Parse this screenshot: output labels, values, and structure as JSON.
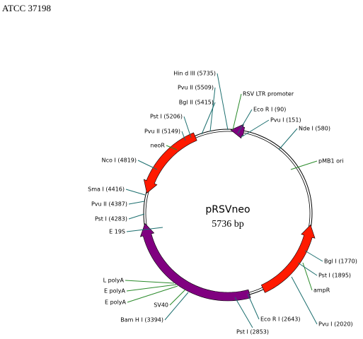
{
  "header": {
    "title": "ATCC 37198"
  },
  "plasmid": {
    "name": "pRSVneo",
    "size": "5736 bp"
  },
  "labels": [
    "Hin d III (5735)",
    "Pvu II (5509)",
    "Bgl  II (5415)",
    "Pst I (5206)",
    "Pvu II (5149)",
    "neoR",
    "Nco I (4819)",
    "Sma  I (4416)",
    "Pvu II (4387)",
    "Pst I (4283)",
    "E 19S",
    "L polyA",
    "E polyA",
    "E polyA",
    "SV40",
    "Bam H I (3394)",
    "Pst I (2853)",
    "Eco R I (2643)",
    "Pvu I (2020)",
    "ampR",
    "Pst I (1895)",
    "Bgl I (1770)",
    "pMB1 ori",
    "Nde  I (580)",
    "Pvu I (151)",
    "Eco R I (90)",
    "RSV LTR promoter"
  ]
}
